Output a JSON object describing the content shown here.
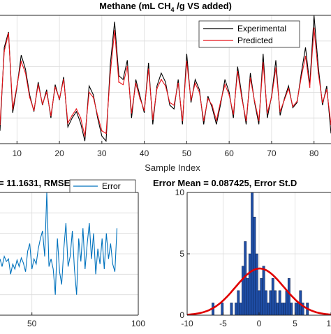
{
  "colors": {
    "experimental": "#000000",
    "predicted": "#e8141a",
    "error": "#0072bd",
    "histogram": "#1f4fa8",
    "normal_fit": "#e00000",
    "grid": "#dcdcdc",
    "axes": "#262626"
  },
  "chart_data": [
    {
      "type": "line",
      "title": "Methane (mL CH",
      "title_sub": "4",
      "title_end": " /g VS added)",
      "xlabel": "Sample Index",
      "ylabel": "",
      "xlim": [
        6,
        84
      ],
      "ylim": [
        0,
        100
      ],
      "grid": true,
      "xticks": [
        10,
        20,
        30,
        40,
        50,
        60,
        70,
        80
      ],
      "xtick_labels": [
        "10",
        "20",
        "30",
        "40",
        "50",
        "60",
        "70",
        "80"
      ],
      "legend": {
        "placement": "top-right",
        "entries": [
          "Experimental",
          "Predicted"
        ]
      },
      "x": [
        6,
        7,
        8,
        9,
        10,
        11,
        12,
        13,
        14,
        15,
        16,
        17,
        18,
        19,
        20,
        21,
        22,
        23,
        24,
        25,
        26,
        27,
        28,
        29,
        30,
        31,
        32,
        33,
        34,
        35,
        36,
        37,
        38,
        39,
        40,
        41,
        42,
        43,
        44,
        45,
        46,
        47,
        48,
        49,
        50,
        51,
        52,
        53,
        54,
        55,
        56,
        57,
        58,
        59,
        60,
        61,
        62,
        63,
        64,
        65,
        66,
        67,
        68,
        69,
        70,
        71,
        72,
        73,
        74,
        75,
        76,
        77,
        78,
        79,
        80,
        81,
        82,
        83,
        84
      ],
      "series": [
        {
          "name": "Experimental",
          "values": [
            10,
            75,
            87,
            24,
            44,
            69,
            58,
            38,
            25,
            48,
            30,
            42,
            20,
            46,
            34,
            52,
            13,
            20,
            25,
            16,
            2,
            45,
            38,
            20,
            6,
            2,
            62,
            95,
            53,
            50,
            65,
            20,
            50,
            37,
            24,
            63,
            15,
            45,
            55,
            48,
            30,
            27,
            50,
            15,
            70,
            32,
            50,
            42,
            15,
            37,
            28,
            15,
            31,
            50,
            40,
            20,
            60,
            37,
            15,
            55,
            32,
            15,
            70,
            20,
            37,
            65,
            22,
            35,
            45,
            28,
            32,
            55,
            75,
            46,
            100,
            60,
            30,
            45,
            8
          ]
        },
        {
          "name": "Predicted",
          "values": [
            15,
            72,
            86,
            27,
            45,
            64,
            55,
            36,
            26,
            46,
            31,
            40,
            22,
            44,
            35,
            50,
            16,
            22,
            27,
            20,
            6,
            40,
            36,
            22,
            10,
            8,
            55,
            88,
            48,
            46,
            60,
            24,
            47,
            35,
            26,
            58,
            19,
            43,
            50,
            45,
            32,
            30,
            47,
            18,
            64,
            34,
            47,
            40,
            18,
            35,
            30,
            18,
            33,
            46,
            38,
            23,
            56,
            35,
            18,
            51,
            33,
            18,
            63,
            24,
            36,
            59,
            25,
            34,
            43,
            29,
            33,
            52,
            68,
            44,
            90,
            55,
            32,
            42,
            15
          ]
        }
      ]
    },
    {
      "type": "line",
      "title": "= 11.1631, RMSE = 3.3411",
      "xlabel": "",
      "ylabel": "",
      "xlim": [
        35,
        100
      ],
      "ylim": [
        -12,
        12
      ],
      "grid": true,
      "xticks": [
        50,
        100
      ],
      "xtick_labels": [
        "50",
        "100"
      ],
      "legend": {
        "placement": "top-right",
        "entries": [
          "Error"
        ]
      },
      "x": [
        35,
        36,
        37,
        38,
        39,
        40,
        41,
        42,
        43,
        44,
        45,
        46,
        47,
        48,
        49,
        50,
        51,
        52,
        53,
        54,
        55,
        56,
        57,
        58,
        59,
        60,
        61,
        62,
        63,
        64,
        65,
        66,
        67,
        68,
        69,
        70,
        71,
        72,
        73,
        74,
        75,
        76,
        77,
        78,
        79,
        80,
        81,
        82,
        83,
        84,
        85,
        86,
        87,
        88,
        89,
        90
      ],
      "series": [
        {
          "name": "Error",
          "values": [
            -1,
            -2.5,
            -0.5,
            -1.5,
            -1,
            -4,
            -2,
            -3,
            -1.2,
            -2.5,
            -0.8,
            -1.8,
            -3.5,
            0.5,
            2,
            -3,
            -1,
            -2,
            1,
            3,
            4.5,
            -0.5,
            14,
            -2.5,
            -1,
            -3,
            -8,
            3,
            -3.5,
            -6,
            1,
            6,
            -2.5,
            -0.5,
            4.5,
            -3,
            -8,
            3,
            -1.5,
            5,
            -3,
            2,
            6,
            -1,
            4,
            -4,
            1,
            -2,
            3,
            -3,
            4,
            -1,
            2,
            -2,
            -3.5,
            5
          ]
        }
      ]
    },
    {
      "type": "bar",
      "title": "Error Mean = 0.087425, Error St.D",
      "xlabel": "",
      "ylabel": "",
      "xlim": [
        -10,
        10
      ],
      "ylim": [
        0,
        10
      ],
      "grid": true,
      "xticks": [
        -10,
        -5,
        0,
        5,
        10
      ],
      "xtick_labels": [
        "-10",
        "-5",
        "0",
        "5",
        "10"
      ],
      "yticks": [
        0,
        5,
        10
      ],
      "ytick_labels": [
        "0",
        "5",
        "10"
      ],
      "bin_width": 0.32,
      "x": [
        -6.4,
        -6.08,
        -5.76,
        -5.44,
        -5.12,
        -4.8,
        -4.48,
        -4.16,
        -3.84,
        -3.52,
        -3.2,
        -2.88,
        -2.56,
        -2.24,
        -1.92,
        -1.6,
        -1.28,
        -0.96,
        -0.64,
        -0.32,
        0,
        0.32,
        0.64,
        0.96,
        1.28,
        1.6,
        1.92,
        2.24,
        2.56,
        2.88,
        3.2,
        3.52,
        3.84,
        4.16,
        4.48,
        4.8,
        5.12,
        5.44,
        5.76,
        6.08,
        6.4,
        6.72
      ],
      "values": [
        1,
        0,
        0,
        0,
        1,
        0,
        0,
        0,
        1,
        0,
        1,
        2,
        1,
        4,
        6,
        3,
        5,
        10,
        8,
        5,
        2,
        3,
        4,
        2,
        1,
        2,
        3,
        2,
        1,
        2,
        1,
        1,
        2,
        3,
        1,
        0,
        1,
        1,
        2,
        1,
        0,
        1
      ],
      "series": [
        {
          "name": "",
          "type": "normal_fit",
          "mean": 0.087425,
          "sd": 3.34,
          "peak": 3.8
        }
      ]
    }
  ]
}
